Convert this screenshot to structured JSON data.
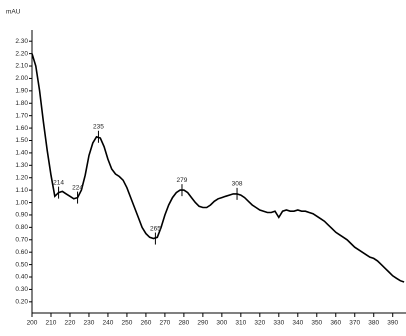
{
  "chart_data": {
    "type": "line",
    "y_label": "mAU",
    "x": [
      200,
      202,
      204,
      206,
      208,
      210,
      212,
      214,
      216,
      218,
      220,
      222,
      224,
      226,
      228,
      230,
      232,
      234,
      236,
      238,
      240,
      242,
      244,
      246,
      248,
      250,
      252,
      254,
      256,
      258,
      260,
      262,
      264,
      266,
      268,
      270,
      272,
      274,
      276,
      278,
      280,
      282,
      284,
      286,
      288,
      290,
      292,
      294,
      296,
      298,
      300,
      302,
      304,
      306,
      308,
      310,
      312,
      314,
      316,
      318,
      320,
      322,
      324,
      326,
      328,
      330,
      332,
      334,
      336,
      338,
      340,
      342,
      344,
      346,
      348,
      350,
      352,
      354,
      356,
      358,
      360,
      362,
      364,
      366,
      368,
      370,
      372,
      374,
      376,
      378,
      380,
      382,
      384,
      386,
      388,
      390,
      392,
      394,
      396
    ],
    "series": [
      {
        "color": "#000000",
        "values": [
          2.2,
          2.1,
          1.9,
          1.65,
          1.42,
          1.22,
          1.05,
          1.08,
          1.09,
          1.07,
          1.05,
          1.03,
          1.04,
          1.1,
          1.22,
          1.38,
          1.48,
          1.53,
          1.52,
          1.45,
          1.35,
          1.27,
          1.23,
          1.21,
          1.18,
          1.12,
          1.04,
          0.96,
          0.88,
          0.8,
          0.75,
          0.72,
          0.71,
          0.72,
          0.8,
          0.9,
          0.98,
          1.04,
          1.08,
          1.1,
          1.1,
          1.08,
          1.04,
          1.0,
          0.97,
          0.96,
          0.96,
          0.98,
          1.01,
          1.03,
          1.04,
          1.05,
          1.06,
          1.07,
          1.07,
          1.06,
          1.04,
          1.01,
          0.98,
          0.96,
          0.94,
          0.93,
          0.92,
          0.92,
          0.93,
          0.88,
          0.93,
          0.94,
          0.93,
          0.93,
          0.94,
          0.93,
          0.93,
          0.92,
          0.91,
          0.89,
          0.87,
          0.85,
          0.82,
          0.79,
          0.76,
          0.74,
          0.72,
          0.7,
          0.67,
          0.64,
          0.62,
          0.6,
          0.58,
          0.56,
          0.55,
          0.53,
          0.5,
          0.47,
          0.44,
          0.41,
          0.39,
          0.37,
          0.36
        ]
      }
    ],
    "peaks": {
      "x": [
        214,
        224,
        235,
        265,
        279,
        308
      ],
      "y": [
        1.08,
        1.04,
        1.53,
        0.71,
        1.1,
        1.07
      ]
    },
    "xlim": [
      200,
      397
    ],
    "ylim": [
      0.11,
      2.35
    ],
    "xticks": [
      200,
      210,
      220,
      230,
      240,
      250,
      260,
      270,
      280,
      290,
      300,
      310,
      320,
      330,
      340,
      350,
      360,
      370,
      380,
      390
    ],
    "yticks": [
      {
        "value": 0.2,
        "label": "0.20"
      },
      {
        "value": 0.3,
        "label": "0.30"
      },
      {
        "value": 0.4,
        "label": "0.40"
      },
      {
        "value": 0.5,
        "label": "0.50"
      },
      {
        "value": 0.6,
        "label": "0.60"
      },
      {
        "value": 0.7,
        "label": "0.70"
      },
      {
        "value": 0.8,
        "label": "0.80"
      },
      {
        "value": 0.9,
        "label": "0.90"
      },
      {
        "value": 1.0,
        "label": "1.00"
      },
      {
        "value": 1.1,
        "label": "1.10"
      },
      {
        "value": 1.2,
        "label": "1.20"
      },
      {
        "value": 1.3,
        "label": "1.30"
      },
      {
        "value": 1.4,
        "label": "1.40"
      },
      {
        "value": 1.5,
        "label": "1.50"
      },
      {
        "value": 1.6,
        "label": "1.60"
      },
      {
        "value": 1.7,
        "label": "1.70"
      },
      {
        "value": 1.8,
        "label": "1.80"
      },
      {
        "value": 1.9,
        "label": "1.90"
      },
      {
        "value": 2.0,
        "label": "2.00"
      },
      {
        "value": 2.1,
        "label": "2.10"
      },
      {
        "value": 2.2,
        "label": "2.20"
      },
      {
        "value": 2.3,
        "label": "2.30"
      }
    ]
  }
}
